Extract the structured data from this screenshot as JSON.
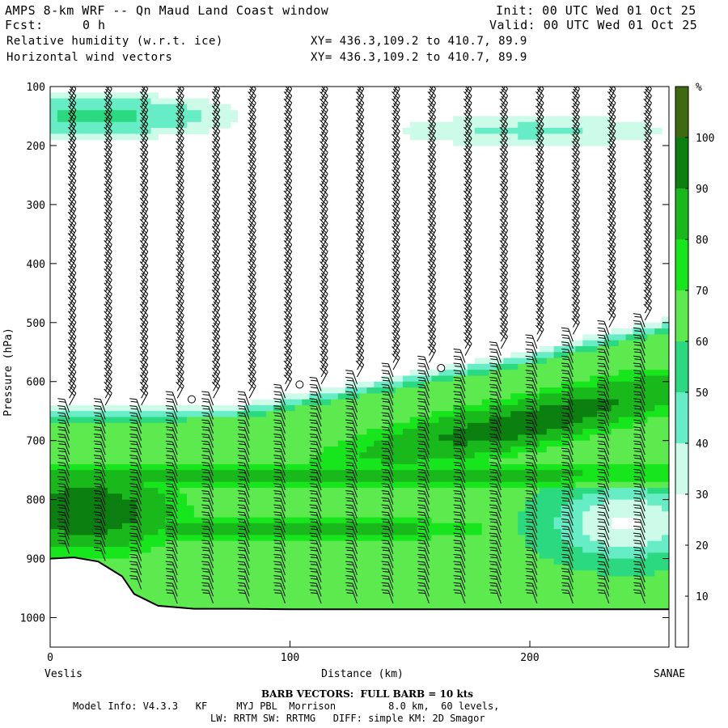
{
  "header": {
    "title": "AMPS 8-km WRF -- Qn Maud Land Coast window",
    "forecast_label": "Fcst:",
    "forecast_value": "0 h",
    "field1": "Relative humidity (w.r.t. ice)",
    "field2": "Horizontal wind vectors",
    "init": "Init: 00 UTC Wed 01 Oct 25",
    "valid": "Valid: 00 UTC Wed 01 Oct 25",
    "xy1": "XY= 436.3,109.2 to 410.7, 89.9",
    "xy2": "XY= 436.3,109.2 to 410.7, 89.9"
  },
  "footer": {
    "barb_note": "BARB VECTORS:  FULL BARB = 10 kts",
    "model_info": "Model Info: V4.3.3   KF     MYJ PBL  Morrison         8.0 km,  60 levels,",
    "model_info2": "LW: RRTM SW: RRTMG   DIFF: simple KM: 2D Smagor"
  },
  "chart_data": {
    "type": "heatmap",
    "title": "Relative humidity (w.r.t. ice)",
    "xlabel": "Distance (km)",
    "ylabel": "Pressure (hPa)",
    "x_range": [
      0,
      258
    ],
    "y_range": [
      100,
      1050
    ],
    "y_scale": "linear (inverted)",
    "x_ticks": [
      0,
      100,
      200
    ],
    "y_ticks": [
      100,
      200,
      300,
      400,
      500,
      600,
      700,
      800,
      900,
      1000
    ],
    "x_endpoint_labels": {
      "left": "Veslis",
      "right": "SANAE"
    },
    "colorbar": {
      "unit": "%",
      "ticks": [
        10,
        20,
        30,
        40,
        50,
        60,
        70,
        80,
        90,
        100
      ],
      "bands": [
        {
          "min": 0,
          "max": 30,
          "color": "#ffffff"
        },
        {
          "min": 30,
          "max": 40,
          "color": "#ccfbe9"
        },
        {
          "min": 40,
          "max": 50,
          "color": "#66edc6"
        },
        {
          "min": 50,
          "max": 60,
          "color": "#2bd980"
        },
        {
          "min": 60,
          "max": 70,
          "color": "#5cea4e"
        },
        {
          "min": 70,
          "max": 80,
          "color": "#17e61c"
        },
        {
          "min": 80,
          "max": 90,
          "color": "#19b91c"
        },
        {
          "min": 90,
          "max": 100,
          "color": "#0b7f10"
        },
        {
          "min": 100,
          "max": 110,
          "color": "#3e6a12"
        }
      ]
    },
    "terrain_profile": [
      {
        "x": 0,
        "p": 900
      },
      {
        "x": 10,
        "p": 898
      },
      {
        "x": 20,
        "p": 905
      },
      {
        "x": 30,
        "p": 930
      },
      {
        "x": 35,
        "p": 960
      },
      {
        "x": 45,
        "p": 980
      },
      {
        "x": 60,
        "p": 985
      },
      {
        "x": 80,
        "p": 985
      },
      {
        "x": 100,
        "p": 986
      },
      {
        "x": 150,
        "p": 986
      },
      {
        "x": 200,
        "p": 986
      },
      {
        "x": 258,
        "p": 986
      }
    ],
    "moist_layer_top": [
      {
        "x": 0,
        "p": 655
      },
      {
        "x": 40,
        "p": 655
      },
      {
        "x": 80,
        "p": 650
      },
      {
        "x": 120,
        "p": 620
      },
      {
        "x": 160,
        "p": 590
      },
      {
        "x": 200,
        "p": 560
      },
      {
        "x": 240,
        "p": 520
      },
      {
        "x": 258,
        "p": 505
      }
    ],
    "calm_markers": [
      {
        "x": 59,
        "p": 630
      },
      {
        "x": 104,
        "p": 605
      },
      {
        "x": 163,
        "p": 577
      }
    ]
  }
}
